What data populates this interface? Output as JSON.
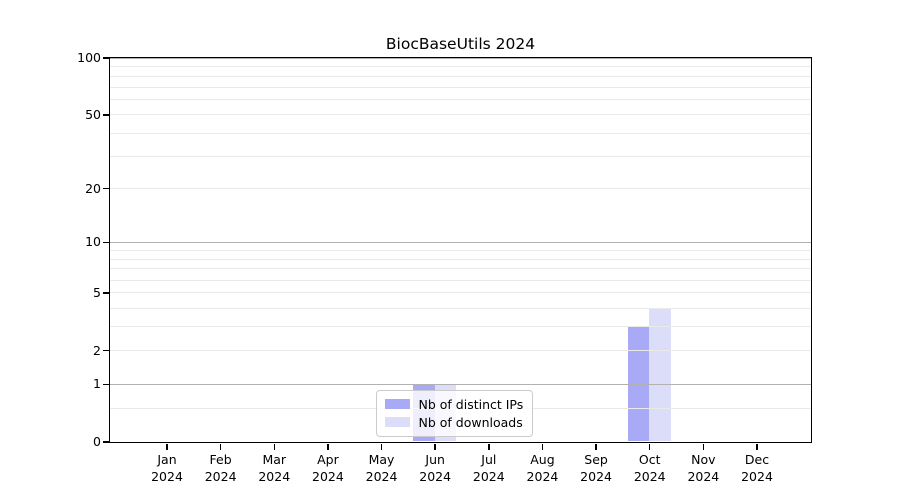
{
  "chart_data": {
    "type": "bar",
    "title": "BiocBaseUtils 2024",
    "months": [
      "Jan",
      "Feb",
      "Mar",
      "Apr",
      "May",
      "Jun",
      "Jul",
      "Aug",
      "Sep",
      "Oct",
      "Nov",
      "Dec"
    ],
    "year": "2024",
    "series": [
      {
        "name": "Nb of distinct IPs",
        "color": "#a9aaf5",
        "values": [
          0,
          0,
          0,
          0,
          0,
          1,
          0,
          0,
          0,
          3,
          0,
          0
        ]
      },
      {
        "name": "Nb of downloads",
        "color": "#dcddf8",
        "values": [
          0,
          0,
          0,
          0,
          0,
          1,
          0,
          0,
          0,
          4,
          0,
          0
        ]
      }
    ],
    "y_axis": {
      "scale": "log1p",
      "ticks": [
        0,
        1,
        2,
        5,
        10,
        20,
        50,
        100
      ],
      "major_gridlines": [
        1,
        10,
        100
      ],
      "minor_gridlines": [
        0.5,
        2,
        3,
        4,
        5,
        6,
        7,
        8,
        9,
        20,
        30,
        40,
        50,
        60,
        70,
        80,
        90
      ],
      "ylim": [
        0,
        117
      ]
    },
    "legend": {
      "entries": [
        "Nb of distinct IPs",
        "Nb of downloads"
      ],
      "position": "inside-bottom-center"
    },
    "colors": {
      "major_grid": "#b1b1b1",
      "minor_grid": "#eaeaea",
      "axis": "#000000"
    }
  }
}
